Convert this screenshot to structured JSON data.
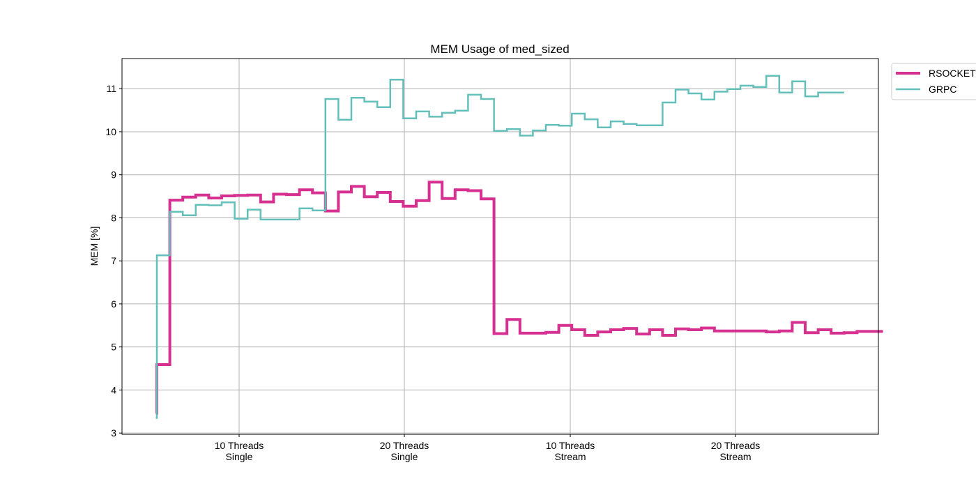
{
  "chart_data": {
    "type": "line",
    "title": "MEM Usage of med_sized",
    "xlabel": "",
    "ylabel": "MEM [%]",
    "ylim": [
      2.97,
      11.7
    ],
    "yticks": [
      "3",
      "4",
      "5",
      "6",
      "7",
      "8",
      "9",
      "10",
      "11"
    ],
    "xticks": [
      [
        "10 Threads",
        "Single"
      ],
      [
        "20 Threads",
        "Single"
      ],
      [
        "10 Threads",
        "Stream"
      ],
      [
        "20 Threads",
        "Stream"
      ]
    ],
    "grid": true,
    "legend_position": "top-right (outside plot)",
    "series": [
      {
        "name": "RSOCKET",
        "color": "#d63091",
        "stroke_width": 4,
        "steps": [
          3.46,
          4.59,
          8.41,
          8.48,
          8.53,
          8.46,
          8.51,
          8.52,
          8.53,
          8.37,
          8.55,
          8.54,
          8.65,
          8.58,
          8.16,
          8.6,
          8.73,
          8.49,
          8.59,
          8.38,
          8.27,
          8.4,
          8.83,
          8.45,
          8.65,
          8.63,
          8.44,
          5.31,
          5.64,
          5.32,
          5.32,
          5.34,
          5.5,
          5.4,
          5.27,
          5.35,
          5.4,
          5.43,
          5.3,
          5.4,
          5.27,
          5.42,
          5.4,
          5.44,
          5.37,
          5.37,
          5.37,
          5.37,
          5.35,
          5.37,
          5.57,
          5.33,
          5.4,
          5.32,
          5.33,
          5.36,
          5.36
        ]
      },
      {
        "name": "GRPC",
        "color": "#63bfb9",
        "stroke_width": 2.5,
        "steps": [
          3.35,
          7.13,
          8.14,
          8.06,
          8.3,
          8.29,
          8.36,
          7.98,
          8.19,
          7.96,
          7.96,
          7.96,
          8.22,
          8.17,
          10.76,
          10.28,
          10.79,
          10.7,
          10.57,
          11.21,
          10.31,
          10.47,
          10.35,
          10.44,
          10.49,
          10.86,
          10.76,
          10.02,
          10.06,
          9.91,
          10.03,
          10.16,
          10.14,
          10.42,
          10.29,
          10.1,
          10.24,
          10.18,
          10.15,
          10.15,
          10.68,
          10.98,
          10.89,
          10.75,
          10.93,
          10.99,
          11.07,
          11.04,
          11.3,
          10.91,
          11.17,
          10.82,
          10.91,
          10.91
        ]
      }
    ]
  }
}
